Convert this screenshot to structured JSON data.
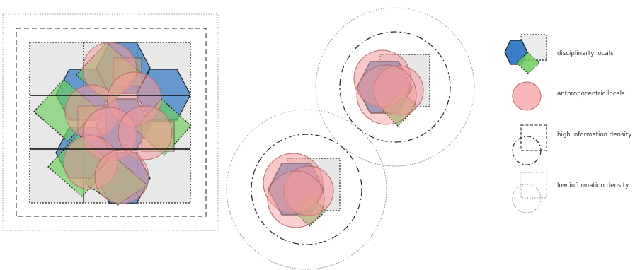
{
  "colors": {
    "blue": "#3b7ec6",
    "green": "#6ccf5a",
    "red": "#f59a9a",
    "red_stroke": "#c87878",
    "grey_fill": "#e6e6e6",
    "dark_stroke": "#222222",
    "dotted_stroke": "#8a8a8a"
  },
  "legend": {
    "disciplinary": "disciplinarty locals",
    "anthropocentric": "anthropocentric locals",
    "high_density": "high information density",
    "low_density": "low information density"
  }
}
